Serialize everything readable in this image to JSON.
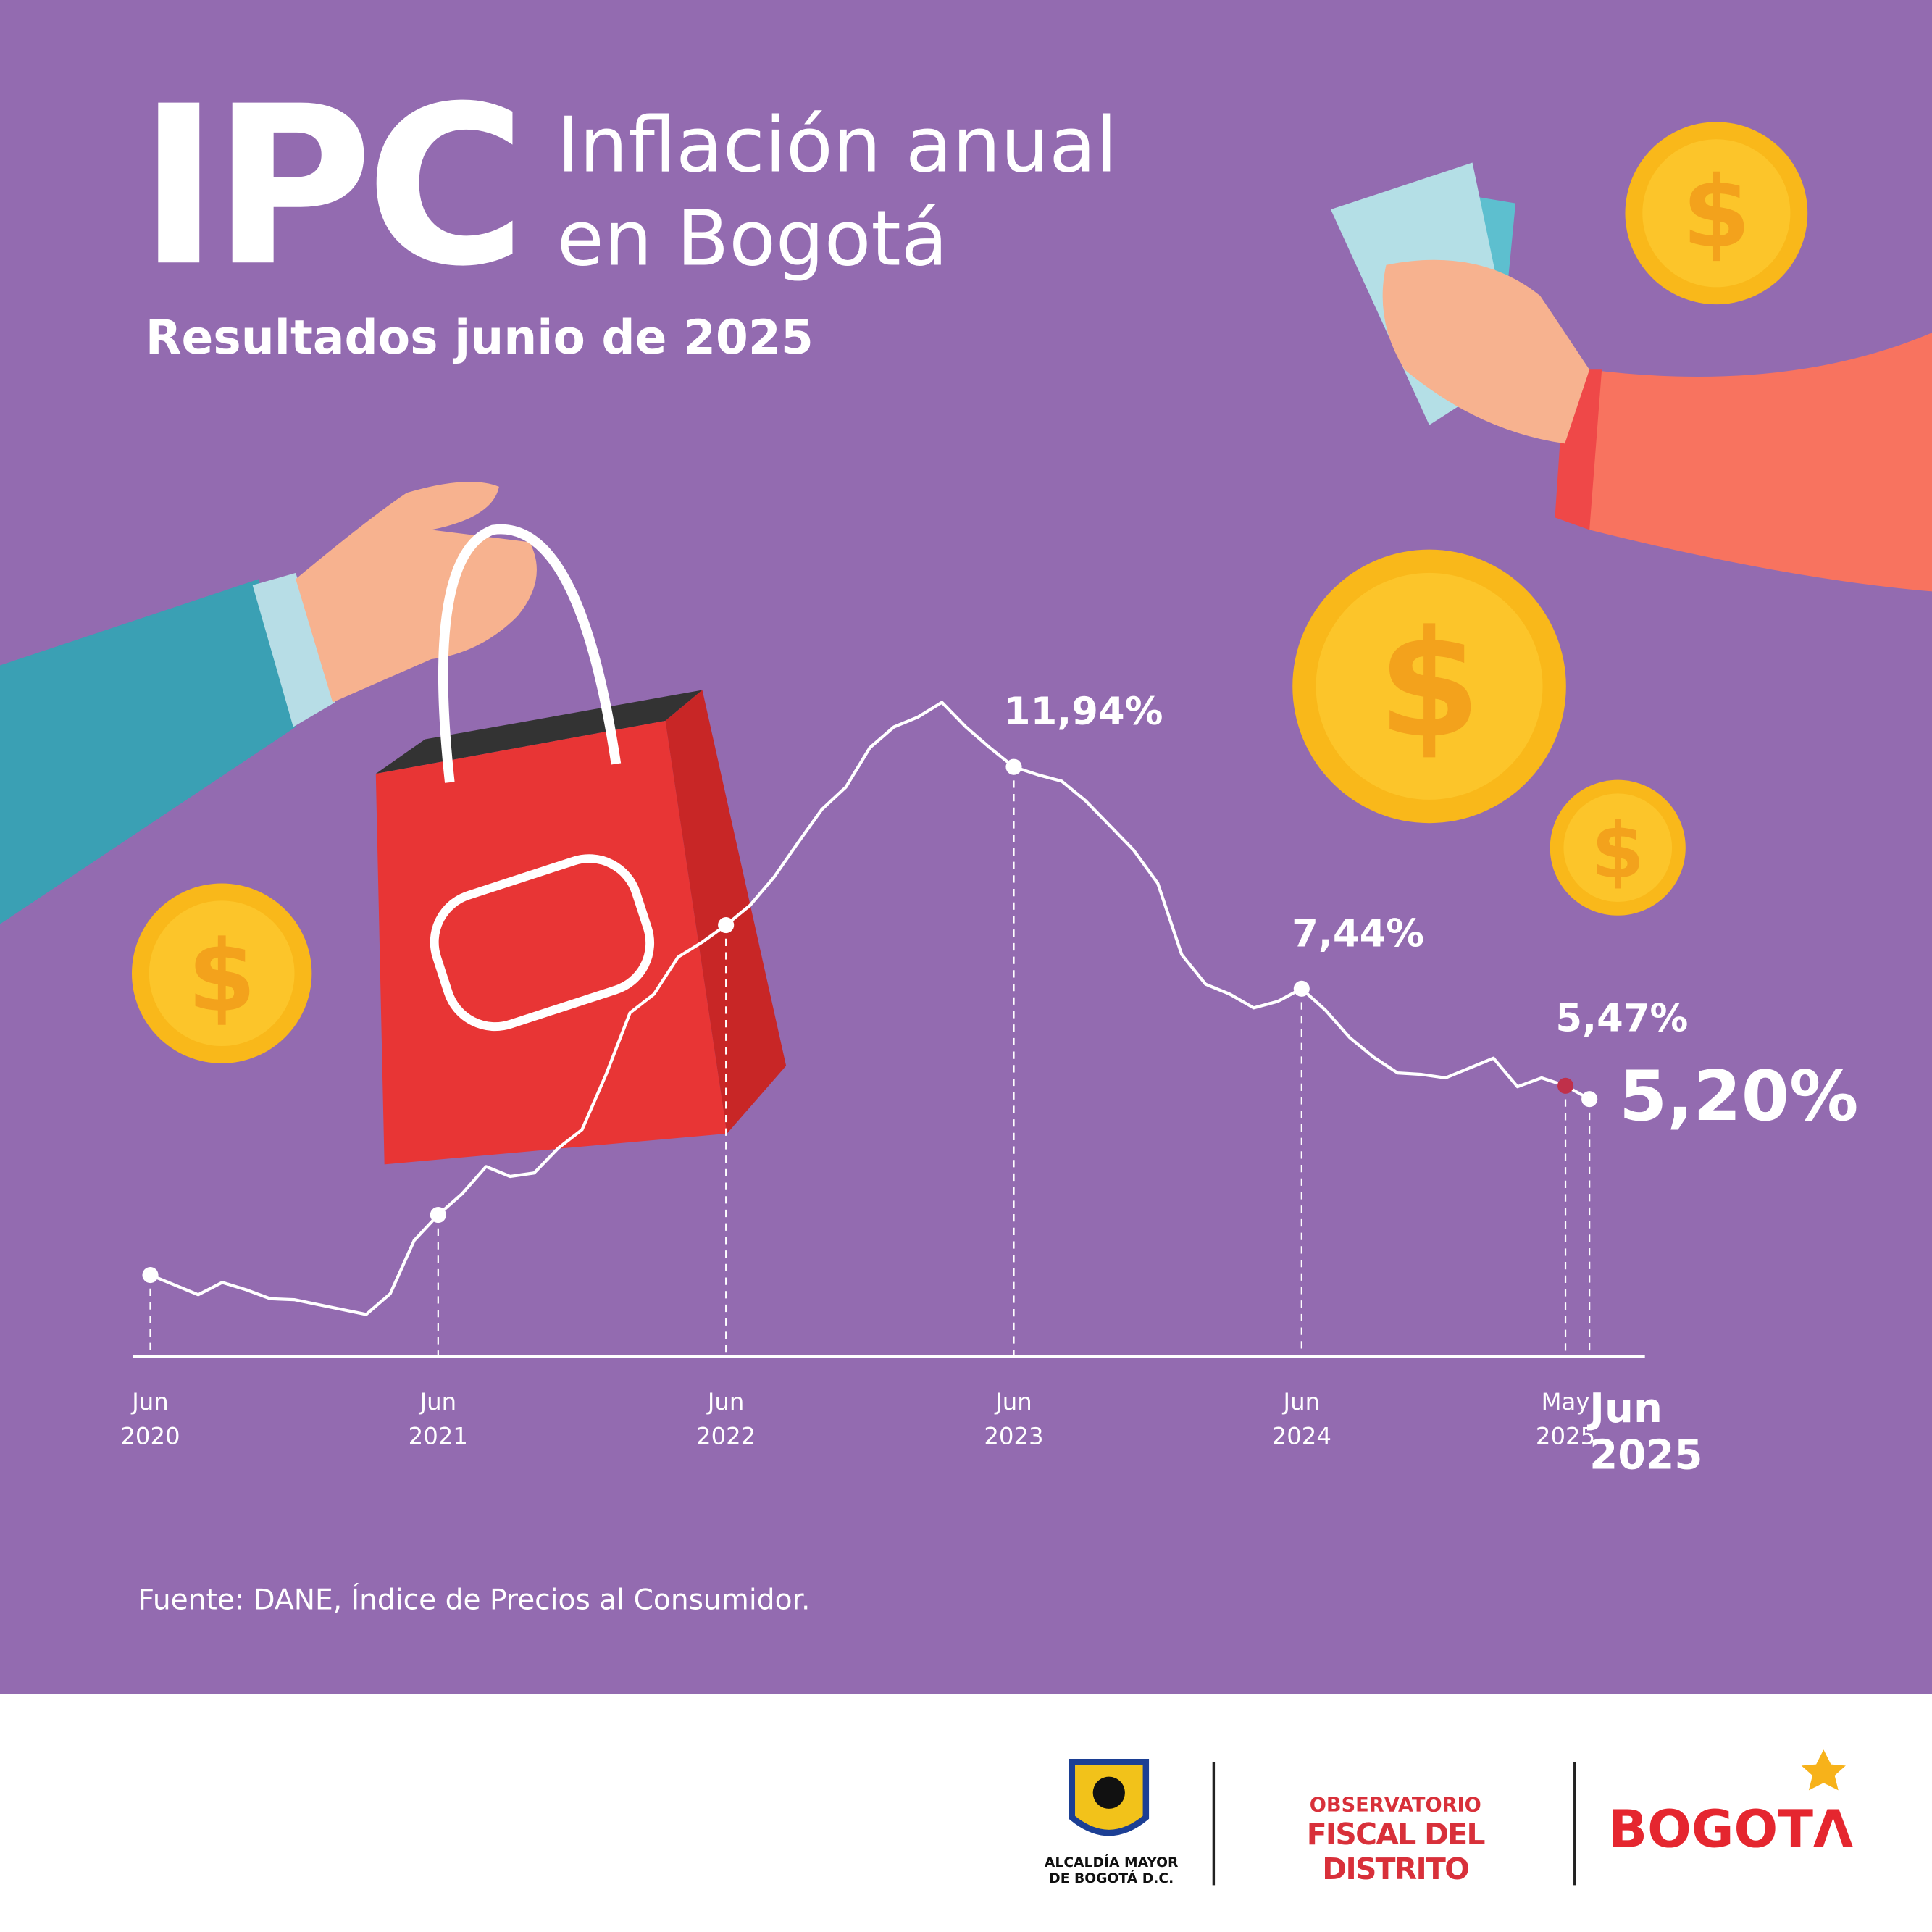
{
  "header": {
    "big": "IPC",
    "title": "Inflación anual en Bogotá",
    "subtitle": "Resultados junio de 2025"
  },
  "footer": {
    "source": "Fuente:  DANE, Índice de Precios al Consumidor.",
    "logo1": "ALCALDÍA MAYOR DE BOGOTÁ D.C.",
    "logo2a": "OBSERVATORIO",
    "logo2b": "FISCAL DEL DISTRITO",
    "logo3": "BOGOTΛ"
  },
  "chart_data": {
    "type": "line",
    "categories": [
      "Jun 2020",
      null,
      null,
      null,
      null,
      null,
      null,
      null,
      null,
      null,
      null,
      null,
      "Jun 2021",
      null,
      null,
      null,
      null,
      null,
      null,
      null,
      null,
      null,
      null,
      null,
      "Jun 2022",
      null,
      null,
      null,
      null,
      null,
      null,
      null,
      null,
      null,
      null,
      null,
      "Jun 2023",
      null,
      null,
      null,
      null,
      null,
      null,
      null,
      null,
      null,
      null,
      null,
      "Jun 2024",
      null,
      null,
      null,
      null,
      null,
      null,
      null,
      null,
      null,
      null,
      "May 2025",
      "Jun 2025"
    ],
    "series": [
      {
        "name": null,
        "color": "#ffffff",
        "values": [
          1.63,
          1.43,
          1.23,
          1.48,
          1.33,
          1.15,
          1.13,
          1.03,
          0.93,
          0.83,
          1.25,
          2.33,
          2.85,
          3.28,
          3.83,
          3.63,
          3.7,
          4.2,
          4.58,
          5.7,
          6.95,
          7.33,
          8.08,
          8.38,
          8.73,
          9.13,
          9.7,
          10.4,
          11.08,
          11.53,
          12.33,
          12.75,
          12.95,
          13.25,
          12.75,
          12.33,
          11.94,
          11.78,
          11.65,
          11.25,
          10.75,
          10.25,
          9.58,
          8.13,
          7.53,
          7.33,
          7.05,
          7.18,
          7.44,
          7.0,
          6.45,
          6.05,
          5.73,
          5.7,
          5.63,
          5.83,
          6.03,
          5.45,
          5.63,
          5.47,
          5.2
        ],
        "value_labels": [
          null,
          null,
          null,
          null,
          null,
          null,
          null,
          null,
          null,
          null,
          null,
          null,
          null,
          null,
          null,
          null,
          null,
          null,
          null,
          null,
          null,
          null,
          null,
          null,
          null,
          null,
          null,
          null,
          null,
          null,
          null,
          null,
          null,
          null,
          null,
          null,
          "11,94%",
          null,
          null,
          null,
          null,
          null,
          null,
          null,
          null,
          null,
          null,
          null,
          "7,44%",
          null,
          null,
          null,
          null,
          null,
          null,
          null,
          null,
          null,
          null,
          "5,47%",
          "5,20%"
        ]
      }
    ],
    "highlight_color": "#c0304a",
    "ylim": [
      0,
      14
    ]
  }
}
